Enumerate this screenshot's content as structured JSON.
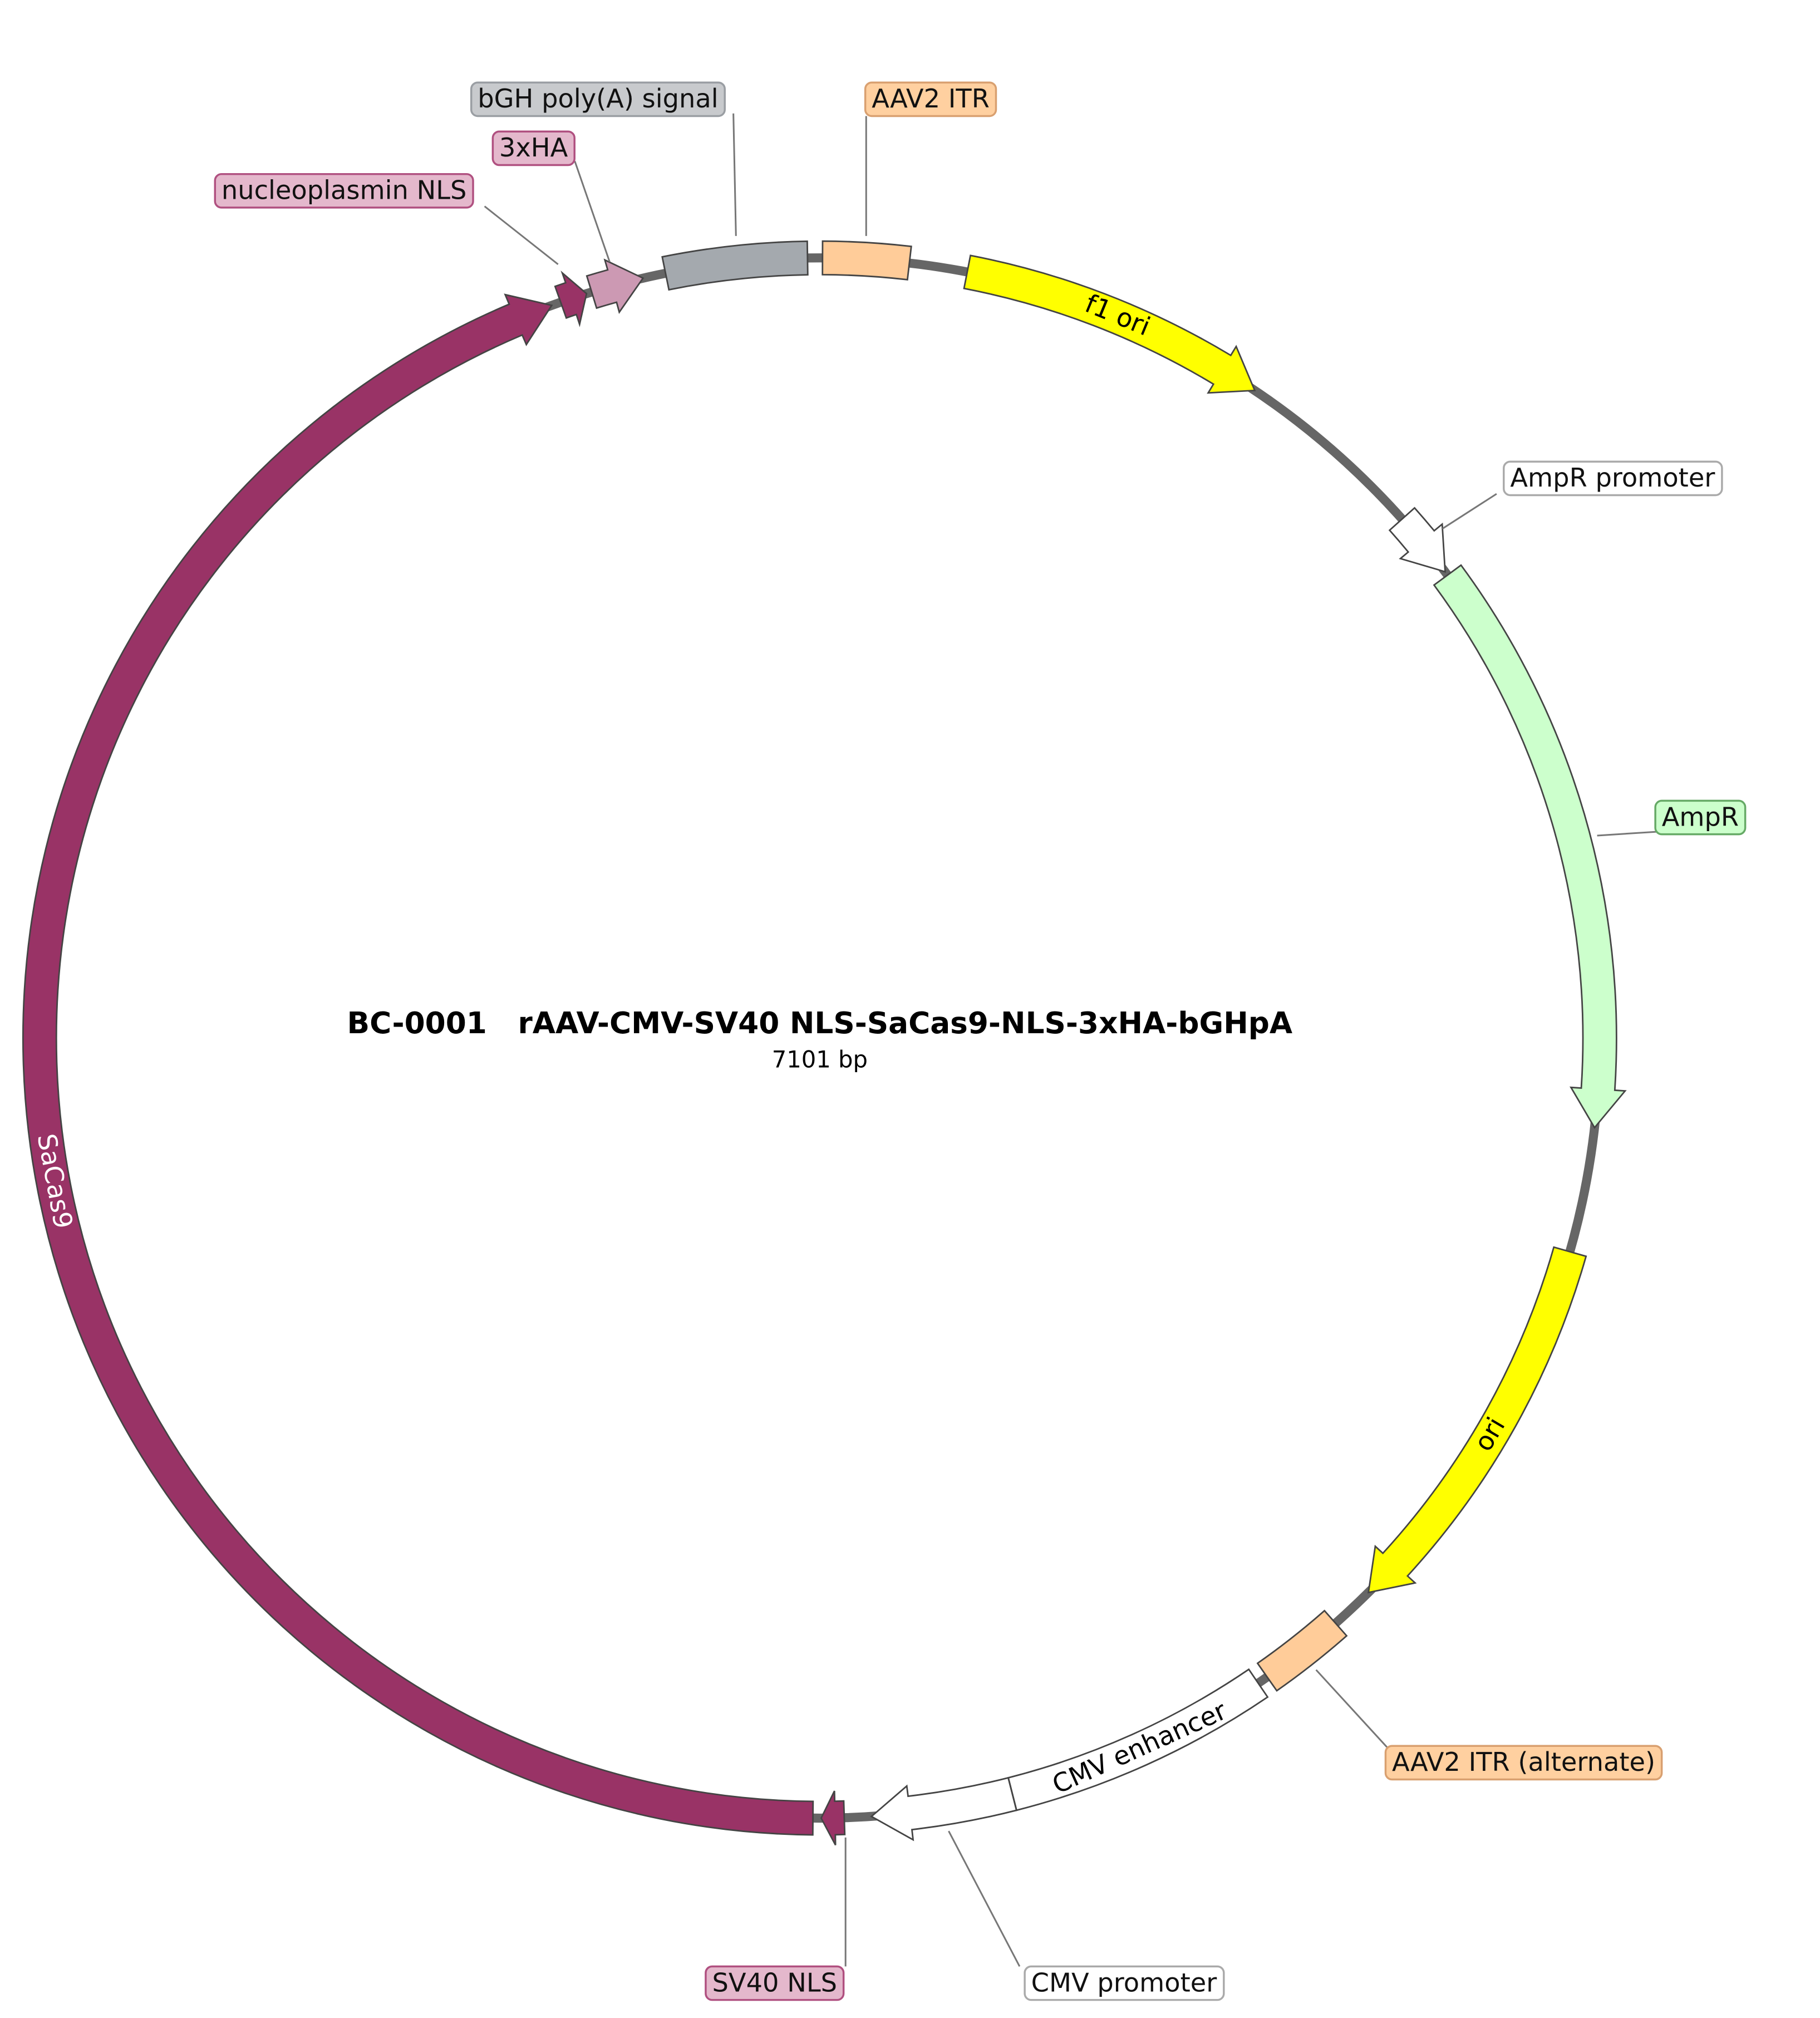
{
  "title": "BC-0001   rAAV-CMV-SV40 NLS-SaCas9-NLS-3xHA-bGHpA",
  "length": "7101 bp",
  "features": [
    {
      "name": "bGH poly(A) signal"
    },
    {
      "name": "AAV2 ITR"
    },
    {
      "name": "f1 ori"
    },
    {
      "name": "AmpR promoter"
    },
    {
      "name": "AmpR"
    },
    {
      "name": "ori"
    },
    {
      "name": "AAV2 ITR (alternate)"
    },
    {
      "name": "CMV enhancer"
    },
    {
      "name": "CMV promoter"
    },
    {
      "name": "SV40 NLS"
    },
    {
      "name": "SaCas9"
    },
    {
      "name": "nucleoplasmin NLS"
    },
    {
      "name": "3xHA"
    }
  ]
}
